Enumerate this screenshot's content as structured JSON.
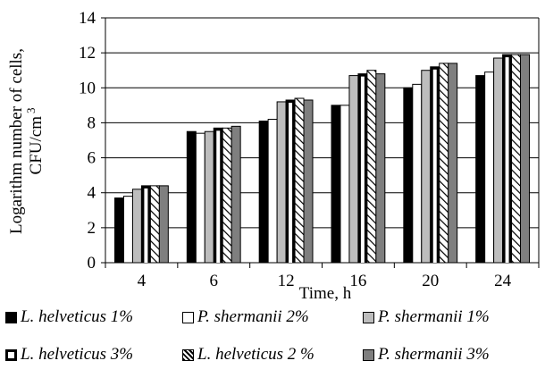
{
  "chart_data": {
    "type": "bar",
    "title": "",
    "xlabel": "Time, h",
    "ylabel_lines": [
      "Logarithm number of cells,",
      "CFU/cm"
    ],
    "ylabel_superscript": "3",
    "ylim": [
      0,
      14
    ],
    "yticks": [
      0,
      2,
      4,
      6,
      8,
      10,
      12,
      14
    ],
    "grid": true,
    "legend_position": "bottom",
    "categories": [
      "4",
      "6",
      "12",
      "16",
      "20",
      "24"
    ],
    "series": [
      {
        "name": "L. helveticus 1%",
        "fill": "solid-black",
        "values": [
          3.7,
          7.5,
          8.1,
          9.0,
          10.0,
          10.7
        ]
      },
      {
        "name": "P. shermanii 2%",
        "fill": "white",
        "values": [
          3.8,
          7.4,
          8.2,
          9.0,
          10.2,
          10.9
        ]
      },
      {
        "name": "P. shermanii 1%",
        "fill": "light-gray",
        "values": [
          4.2,
          7.5,
          9.2,
          10.7,
          11.0,
          11.7
        ]
      },
      {
        "name": "L. helveticus 3%",
        "fill": "white-black-frame",
        "values": [
          4.4,
          7.7,
          9.3,
          10.8,
          11.2,
          11.9
        ]
      },
      {
        "name": "L. helveticus 2 %",
        "fill": "diagonal-hatch",
        "values": [
          4.4,
          7.7,
          9.4,
          11.0,
          11.4,
          11.9
        ]
      },
      {
        "name": "P. shermanii 3%",
        "fill": "dark-gray",
        "values": [
          4.4,
          7.8,
          9.3,
          10.8,
          11.4,
          11.9
        ]
      }
    ]
  },
  "colors": {
    "black": "#000000",
    "white": "#ffffff",
    "light_gray": "#bdbdbd",
    "dark_gray": "#7f7f7f",
    "grid": "#000000"
  }
}
